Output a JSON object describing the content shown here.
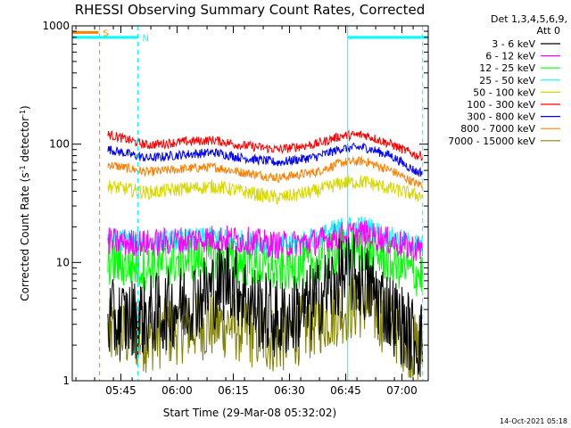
{
  "chart_data": {
    "type": "line",
    "title": "RHESSI Observing Summary Count Rates, Corrected",
    "xlabel": "Start Time (29-Mar-08 05:32:02)",
    "ylabel_main": "Corrected Count Rate (s",
    "ylabel_sup1": "-1",
    "ylabel_mid": " detector",
    "ylabel_sup2": "-1",
    "ylabel_end": ")",
    "y_scale": "log",
    "ylim": [
      1,
      1000
    ],
    "x_unit": "minutes since 05:32:02",
    "xlim": [
      0,
      95
    ],
    "x_ticks": [
      {
        "label": "05:45",
        "x": 12.97
      },
      {
        "label": "06:00",
        "x": 27.97
      },
      {
        "label": "06:15",
        "x": 42.97
      },
      {
        "label": "06:30",
        "x": 57.97
      },
      {
        "label": "06:45",
        "x": 72.97
      },
      {
        "label": "07:00",
        "x": 87.97
      }
    ],
    "y_ticks": [
      {
        "label": "1",
        "y": 1
      },
      {
        "label": "10",
        "y": 10
      },
      {
        "label": "100",
        "y": 100
      },
      {
        "label": "1000",
        "y": 1000
      }
    ],
    "legend": {
      "header1": "Det 1,3,4,5,6,9,",
      "header2": "Att 0",
      "position": "top-right-outside"
    },
    "series": [
      {
        "name": "3 - 6 keV",
        "color": "#000000",
        "x": [
          10,
          20,
          30,
          38,
          42,
          48,
          55,
          62,
          68,
          72,
          75,
          80,
          86,
          92
        ],
        "y": [
          3.2,
          3.5,
          4.5,
          6.0,
          7.5,
          4.5,
          3.2,
          4.0,
          6.0,
          7.5,
          8.0,
          6.0,
          3.5,
          2.2
        ],
        "noise": 0.35
      },
      {
        "name": "6 - 12 keV",
        "color": "#ff00ff",
        "x": [
          10,
          20,
          30,
          38,
          45,
          55,
          65,
          72,
          78,
          85,
          92
        ],
        "y": [
          15,
          14.5,
          15.5,
          16,
          15.5,
          14,
          15,
          17,
          17.5,
          15,
          13
        ],
        "noise": 0.12
      },
      {
        "name": "12 - 25 keV",
        "color": "#00ff00",
        "x": [
          10,
          20,
          30,
          38,
          45,
          55,
          65,
          72,
          78,
          85,
          92
        ],
        "y": [
          10,
          9,
          10.5,
          11,
          10,
          8.5,
          10,
          12.5,
          13,
          10,
          8
        ],
        "noise": 0.2
      },
      {
        "name": "25 - 50 keV",
        "color": "#00ffff",
        "x": [
          10,
          20,
          30,
          38,
          45,
          55,
          65,
          72,
          78,
          85,
          92
        ],
        "y": [
          16,
          14.5,
          15.5,
          16,
          15,
          13.5,
          16,
          19.5,
          20,
          16,
          14
        ],
        "noise": 0.1
      },
      {
        "name": "50 - 100 keV",
        "color": "#d8d800",
        "x": [
          10,
          20,
          30,
          38,
          45,
          55,
          65,
          72,
          78,
          85,
          92
        ],
        "y": [
          44,
          39,
          42,
          44,
          40,
          35,
          40,
          47,
          48,
          42,
          37
        ],
        "noise": 0.06
      },
      {
        "name": "100 - 300 keV",
        "color": "#ff0000",
        "x": [
          10,
          20,
          30,
          38,
          45,
          55,
          65,
          72,
          78,
          85,
          92
        ],
        "y": [
          120,
          98,
          105,
          108,
          98,
          90,
          100,
          118,
          120,
          100,
          80
        ],
        "noise": 0.04
      },
      {
        "name": "300 - 800 keV",
        "color": "#0000ff",
        "x": [
          10,
          20,
          30,
          38,
          45,
          55,
          65,
          72,
          78,
          85,
          92
        ],
        "y": [
          90,
          76,
          82,
          85,
          77,
          70,
          78,
          92,
          94,
          80,
          58
        ],
        "noise": 0.04
      },
      {
        "name": "800 - 7000 keV",
        "color": "#ff8000",
        "x": [
          10,
          20,
          30,
          38,
          45,
          55,
          65,
          72,
          78,
          85,
          92
        ],
        "y": [
          67,
          58,
          62,
          64,
          58,
          52,
          58,
          70,
          72,
          60,
          46
        ],
        "noise": 0.04
      },
      {
        "name": "7000 - 15000 keV",
        "color": "#808000",
        "x": [
          10,
          20,
          30,
          38,
          42,
          48,
          55,
          62,
          68,
          72,
          78,
          85,
          92
        ],
        "y": [
          2.5,
          2.3,
          2.8,
          3.0,
          3.0,
          2.5,
          2.2,
          2.8,
          3.5,
          4.0,
          4.5,
          3.0,
          1.8
        ],
        "noise": 0.3
      }
    ],
    "annotations": [
      {
        "label": "S",
        "color": "#ff8000",
        "x1": 0,
        "x2": 7,
        "y": 880
      },
      {
        "label": "N",
        "color": "#00ffff",
        "x1": 0,
        "x2": 17.5,
        "y": 800
      },
      {
        "label": "",
        "color": "#00ffff",
        "x1": 73.5,
        "x2": 95,
        "y": 800
      }
    ],
    "vlines": [
      {
        "x": 7.3,
        "color": "#ff8000",
        "style": "dashed"
      },
      {
        "x": 17.5,
        "color": "#00ffff",
        "style": "dashed"
      },
      {
        "x": 73.5,
        "color": "#00ffff",
        "style": "solid"
      },
      {
        "x": 93.5,
        "color": "#00ffff",
        "style": "dashed"
      }
    ],
    "footer": "14-Oct-2021 05:18"
  }
}
